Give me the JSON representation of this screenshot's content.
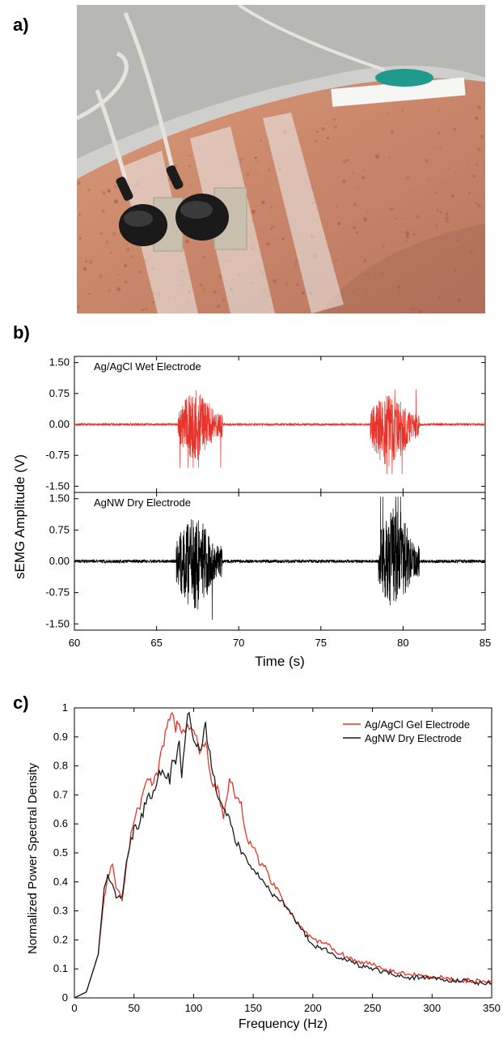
{
  "panels": {
    "a": "a)",
    "b": "b)",
    "c": "c)"
  },
  "photo": {
    "icon": "forearm-with-electrodes-photo"
  },
  "chart_data": [
    {
      "type": "line",
      "id": "emg-ag-agcl",
      "inner_label": "Ag/AgCl Wet Electrode",
      "color": "#e8332a",
      "xlim": [
        60,
        85
      ],
      "ylim": [
        -1.65,
        1.65
      ],
      "yticks": [
        "1.50",
        "0.75",
        "0.00",
        "-0.75",
        "-1.50"
      ],
      "bursts": [
        {
          "start": 66.3,
          "end": 69.0,
          "max": 0.98,
          "min": -1.05
        },
        {
          "start": 78.0,
          "end": 81.0,
          "max": 0.85,
          "min": -1.2
        }
      ],
      "baseline_noise": 0.03
    },
    {
      "type": "line",
      "id": "emg-agnw",
      "inner_label": "AgNW Dry Electrode",
      "color": "#000000",
      "xlim": [
        60,
        85
      ],
      "ylim": [
        -1.65,
        1.65
      ],
      "yticks": [
        "1.50",
        "0.75",
        "0.00",
        "-0.75",
        "-1.50"
      ],
      "xticks": [
        "60",
        "65",
        "70",
        "75",
        "80",
        "85"
      ],
      "xlabel": "Time (s)",
      "bursts": [
        {
          "start": 66.2,
          "end": 69.0,
          "max": 1.25,
          "min": -1.4
        },
        {
          "start": 78.5,
          "end": 81.0,
          "max": 1.55,
          "min": -1.3
        }
      ],
      "baseline_noise": 0.04
    },
    {
      "type": "line",
      "id": "psd",
      "xlabel": "Frequency (Hz)",
      "ylabel": "Normalized Power Spectral Density",
      "xlim": [
        0,
        350
      ],
      "ylim": [
        0,
        1
      ],
      "xticks": [
        "0",
        "50",
        "100",
        "150",
        "200",
        "250",
        "300",
        "350"
      ],
      "yticks": [
        "0",
        "0.1",
        "0.2",
        "0.3",
        "0.4",
        "0.5",
        "0.6",
        "0.7",
        "0.8",
        "0.9",
        "1"
      ],
      "legend_position": "top-right",
      "series": [
        {
          "name": "Ag/AgCl Gel Electrode",
          "color": "#e8332a",
          "x": [
            0,
            10,
            20,
            25,
            28,
            32,
            35,
            40,
            45,
            50,
            55,
            60,
            65,
            70,
            75,
            80,
            82,
            85,
            88,
            90,
            95,
            100,
            105,
            110,
            115,
            120,
            125,
            130,
            135,
            140,
            145,
            150,
            155,
            160,
            165,
            170,
            175,
            180,
            185,
            190,
            195,
            200,
            210,
            220,
            230,
            240,
            250,
            260,
            270,
            280,
            290,
            300,
            310,
            320,
            330,
            340,
            350
          ],
          "y": [
            0,
            0.02,
            0.15,
            0.35,
            0.41,
            0.47,
            0.38,
            0.34,
            0.5,
            0.62,
            0.66,
            0.76,
            0.74,
            0.78,
            0.88,
            0.97,
            1.0,
            0.93,
            0.96,
            0.9,
            0.94,
            0.92,
            0.85,
            0.88,
            0.74,
            0.72,
            0.63,
            0.75,
            0.7,
            0.66,
            0.55,
            0.52,
            0.47,
            0.45,
            0.4,
            0.38,
            0.34,
            0.3,
            0.27,
            0.24,
            0.22,
            0.2,
            0.19,
            0.16,
            0.14,
            0.12,
            0.12,
            0.1,
            0.09,
            0.08,
            0.08,
            0.07,
            0.07,
            0.06,
            0.06,
            0.06,
            0.06
          ]
        },
        {
          "name": "AgNW Dry Electrode",
          "color": "#1a1a1a",
          "x": [
            0,
            10,
            20,
            25,
            28,
            32,
            35,
            40,
            45,
            50,
            55,
            60,
            65,
            70,
            75,
            80,
            82,
            85,
            88,
            90,
            95,
            100,
            105,
            110,
            115,
            120,
            125,
            130,
            135,
            140,
            145,
            150,
            155,
            160,
            165,
            170,
            175,
            180,
            185,
            190,
            195,
            200,
            210,
            220,
            230,
            240,
            250,
            260,
            270,
            280,
            290,
            300,
            310,
            320,
            330,
            340,
            350
          ],
          "y": [
            0,
            0.02,
            0.15,
            0.38,
            0.42,
            0.4,
            0.34,
            0.35,
            0.5,
            0.58,
            0.6,
            0.68,
            0.7,
            0.76,
            0.78,
            0.75,
            0.82,
            0.8,
            0.88,
            0.75,
            1.0,
            0.88,
            0.85,
            0.93,
            0.8,
            0.7,
            0.65,
            0.62,
            0.55,
            0.5,
            0.48,
            0.44,
            0.42,
            0.4,
            0.36,
            0.34,
            0.33,
            0.3,
            0.27,
            0.24,
            0.21,
            0.18,
            0.17,
            0.14,
            0.13,
            0.11,
            0.1,
            0.09,
            0.08,
            0.07,
            0.07,
            0.07,
            0.06,
            0.06,
            0.06,
            0.05,
            0.05
          ]
        }
      ]
    }
  ],
  "chart_b": {
    "ylabel": "sEMG Amplitude (V)"
  }
}
